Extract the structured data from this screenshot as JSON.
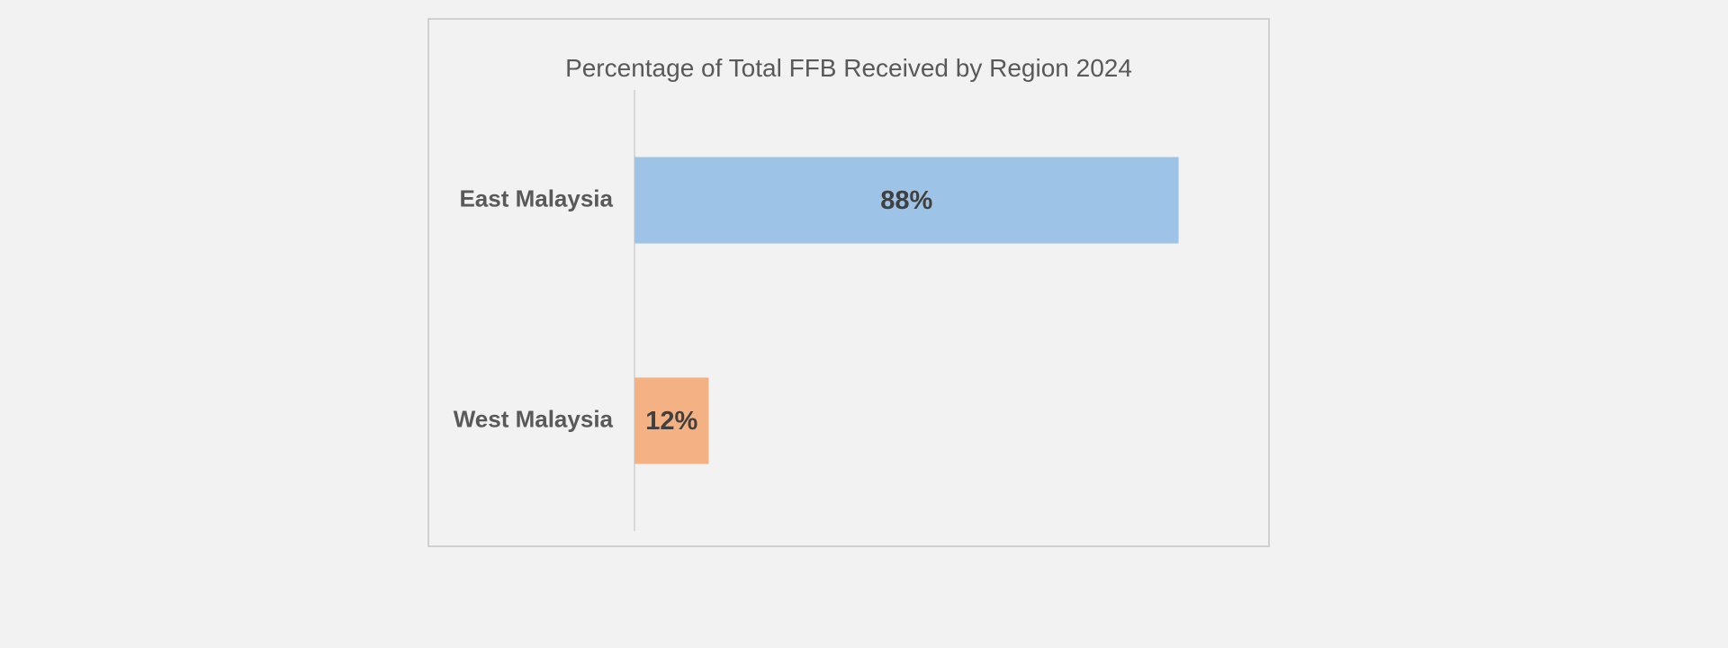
{
  "chart_data": {
    "type": "bar",
    "orientation": "horizontal",
    "title": "Percentage of Total FFB Received by Region 2024",
    "categories": [
      "East Malaysia",
      "West Malaysia"
    ],
    "values": [
      88,
      12
    ],
    "data_labels": [
      "88%",
      "12%"
    ],
    "colors": [
      "#9dc3e6",
      "#f4b183"
    ],
    "xlim": [
      0,
      100
    ],
    "xlabel": "",
    "ylabel": "",
    "grid": false,
    "legend": "none"
  }
}
